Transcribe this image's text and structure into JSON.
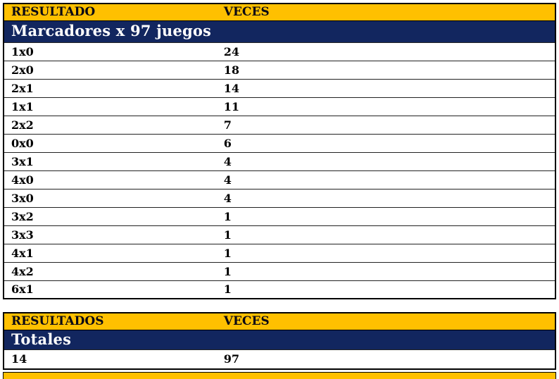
{
  "colors": {
    "title_bg": "#12265F",
    "title_text": "#FFFFFF",
    "header_bg": "#FFC000",
    "header_text": "#0A0A14",
    "row_text": "#000000",
    "border": "#000000"
  },
  "marcadores_table": {
    "title": "Marcadores x 97 juegos",
    "columns": [
      "RESULTADO",
      "VECES"
    ],
    "rows": [
      [
        "1x0",
        "24"
      ],
      [
        "2x0",
        "18"
      ],
      [
        "2x1",
        "14"
      ],
      [
        "1x1",
        "11"
      ],
      [
        "2x2",
        "7"
      ],
      [
        "0x0",
        "6"
      ],
      [
        "3x1",
        "4"
      ],
      [
        "4x0",
        "4"
      ],
      [
        "3x0",
        "4"
      ],
      [
        "3x2",
        "1"
      ],
      [
        "3x3",
        "1"
      ],
      [
        "4x1",
        "1"
      ],
      [
        "4x2",
        "1"
      ],
      [
        "6x1",
        "1"
      ]
    ]
  },
  "totales_table": {
    "title": "Totales",
    "columns": [
      "RESULTADOS",
      "VECES"
    ],
    "rows": [
      [
        "14",
        "97"
      ]
    ]
  }
}
